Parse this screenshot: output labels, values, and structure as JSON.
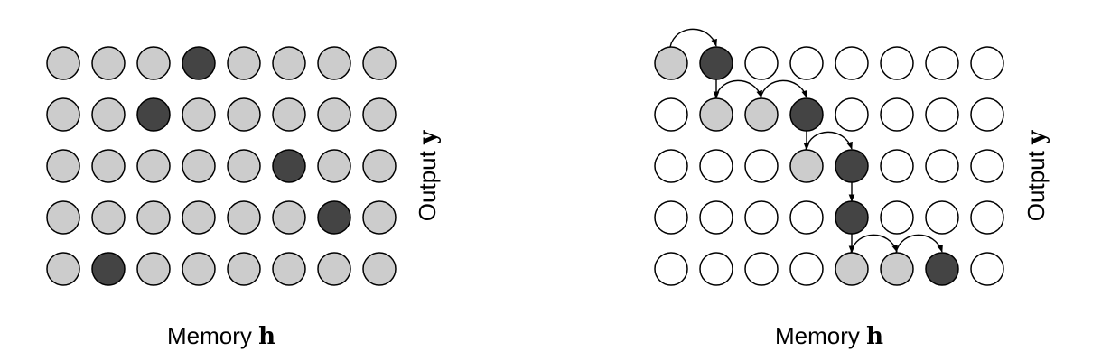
{
  "colors": {
    "light": "#cccccc",
    "dark": "#444444",
    "empty": "#ffffff",
    "stroke": "#000000"
  },
  "panels": [
    {
      "id": "left",
      "x_label": "Memory",
      "x_var": "h",
      "y_label": "Output",
      "y_var": "y",
      "grid": [
        "LLLDLLLL",
        "LLDLLLLL",
        "LLLLLDLL",
        "LLLLLLDL",
        "LDLLLLLL"
      ],
      "arrows": []
    },
    {
      "id": "right",
      "x_label": "Memory",
      "x_var": "h",
      "y_label": "Output",
      "y_var": "y",
      "grid": [
        "LDWWWWWW",
        "WLLDWWWW",
        "WWWLDWWW",
        "WWWWDWWW",
        "WWWWLLDW"
      ],
      "arrows": [
        {
          "from": [
            0,
            0
          ],
          "to": [
            0,
            1
          ],
          "kind": "arc"
        },
        {
          "from": [
            0,
            1
          ],
          "to": [
            1,
            1
          ],
          "kind": "down"
        },
        {
          "from": [
            1,
            1
          ],
          "to": [
            1,
            2
          ],
          "kind": "arc"
        },
        {
          "from": [
            1,
            2
          ],
          "to": [
            1,
            3
          ],
          "kind": "arc"
        },
        {
          "from": [
            1,
            3
          ],
          "to": [
            2,
            3
          ],
          "kind": "down"
        },
        {
          "from": [
            2,
            3
          ],
          "to": [
            2,
            4
          ],
          "kind": "arc"
        },
        {
          "from": [
            2,
            4
          ],
          "to": [
            3,
            4
          ],
          "kind": "down"
        },
        {
          "from": [
            3,
            4
          ],
          "to": [
            4,
            4
          ],
          "kind": "down"
        },
        {
          "from": [
            4,
            4
          ],
          "to": [
            4,
            5
          ],
          "kind": "arc"
        },
        {
          "from": [
            4,
            5
          ],
          "to": [
            4,
            6
          ],
          "kind": "arc"
        }
      ]
    }
  ]
}
